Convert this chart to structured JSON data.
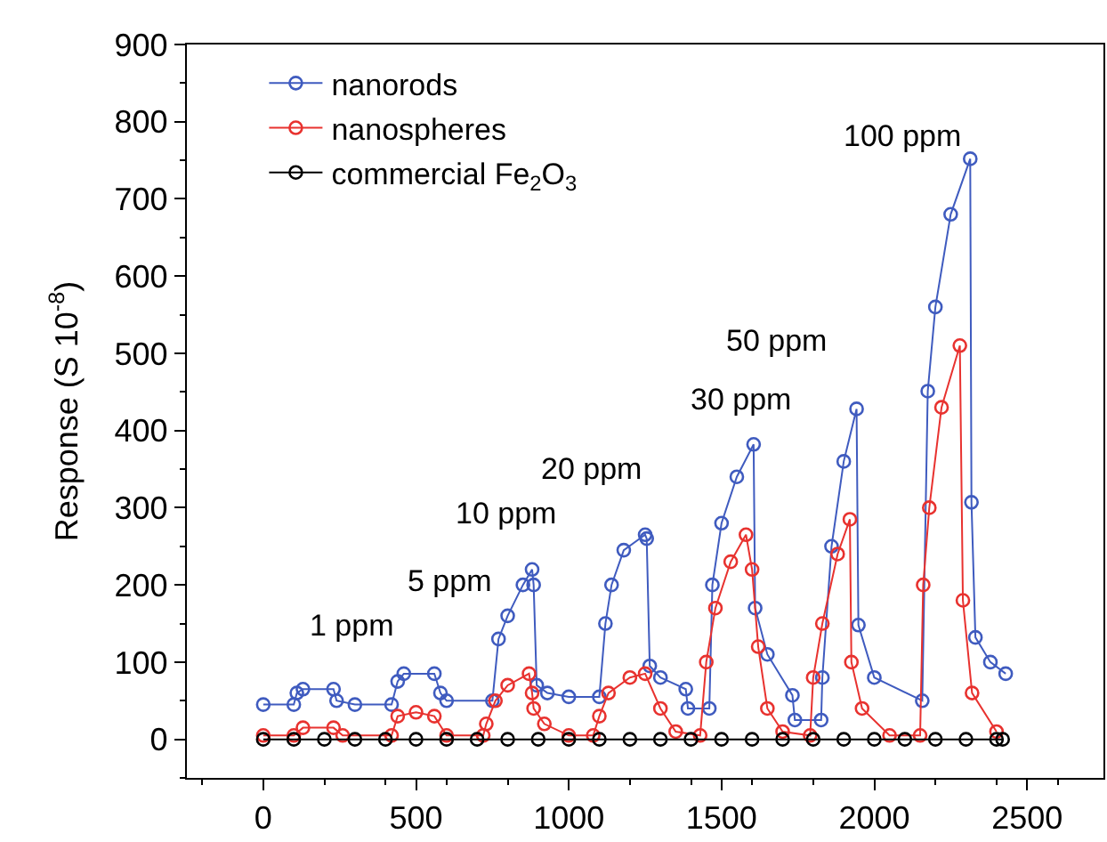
{
  "chart_data": {
    "type": "line",
    "ylabel": "Response (S 10$^{-8}$)",
    "xlim": [
      -250,
      2750
    ],
    "ylim": [
      -50,
      900
    ],
    "xticks": [
      0,
      500,
      1000,
      1500,
      2000,
      2500
    ],
    "yticks": [
      0,
      100,
      200,
      300,
      400,
      500,
      600,
      700,
      800,
      900
    ],
    "grid": false,
    "legend": "top left",
    "marker": "circle",
    "line_style": "solid",
    "series": [
      {
        "name": "nanorods",
        "color": "#3f5bbf",
        "x": [
          0,
          100,
          110,
          130,
          230,
          240,
          300,
          420,
          440,
          460,
          560,
          580,
          600,
          750,
          770,
          800,
          850,
          880,
          885,
          895,
          930,
          1000,
          1100,
          1120,
          1140,
          1180,
          1250,
          1255,
          1265,
          1300,
          1383,
          1390,
          1460,
          1470,
          1500,
          1550,
          1605,
          1610,
          1650,
          1732,
          1740,
          1826,
          1830,
          1860,
          1900,
          1942,
          1948,
          2000,
          2157,
          2175,
          2200,
          2250,
          2314,
          2318,
          2331,
          2380,
          2430
        ],
        "values": [
          45,
          45,
          60,
          65,
          65,
          50,
          45,
          45,
          75,
          85,
          85,
          60,
          50,
          50,
          130,
          160,
          200,
          220,
          200,
          70,
          60,
          55,
          55,
          150,
          200,
          245,
          265,
          260,
          95,
          80,
          65,
          40,
          40,
          200,
          280,
          340,
          382,
          170,
          110,
          57,
          25,
          25,
          80,
          250,
          360,
          428,
          148,
          80,
          50,
          451,
          560,
          680,
          752,
          307,
          132,
          100,
          85
        ]
      },
      {
        "name": "nanospheres",
        "color": "#e8322f",
        "x": [
          0,
          100,
          130,
          230,
          260,
          420,
          440,
          500,
          560,
          600,
          720,
          730,
          760,
          800,
          870,
          880,
          885,
          920,
          1000,
          1080,
          1100,
          1130,
          1200,
          1250,
          1300,
          1350,
          1430,
          1450,
          1480,
          1530,
          1580,
          1600,
          1620,
          1650,
          1700,
          1790,
          1800,
          1830,
          1880,
          1920,
          1925,
          1960,
          2050,
          2150,
          2160,
          2180,
          2220,
          2280,
          2290,
          2320,
          2400
        ],
        "values": [
          5,
          5,
          15,
          15,
          5,
          5,
          30,
          35,
          30,
          5,
          5,
          20,
          50,
          70,
          85,
          60,
          40,
          20,
          5,
          5,
          30,
          60,
          80,
          85,
          40,
          10,
          5,
          100,
          170,
          230,
          265,
          220,
          120,
          40,
          10,
          5,
          80,
          150,
          240,
          285,
          100,
          40,
          5,
          5,
          200,
          300,
          430,
          510,
          180,
          60,
          10
        ]
      },
      {
        "name": "commercial Fe$_{2}$O$_{3}$",
        "color": "#000000",
        "x": [
          0,
          100,
          200,
          300,
          400,
          500,
          600,
          700,
          800,
          900,
          1000,
          1100,
          1200,
          1300,
          1400,
          1500,
          1600,
          1700,
          1800,
          1900,
          2000,
          2100,
          2200,
          2300,
          2400,
          2420
        ],
        "values": [
          0,
          0,
          0,
          0,
          0,
          0,
          0,
          0,
          0,
          0,
          0,
          0,
          0,
          0,
          0,
          0,
          0,
          0,
          0,
          0,
          0,
          0,
          0,
          0,
          0,
          0
        ]
      }
    ],
    "annotations": [
      "1 ppm",
      "5 ppm",
      "10 ppm",
      "20 ppm",
      "30 ppm",
      "50 ppm",
      "100 ppm"
    ]
  }
}
